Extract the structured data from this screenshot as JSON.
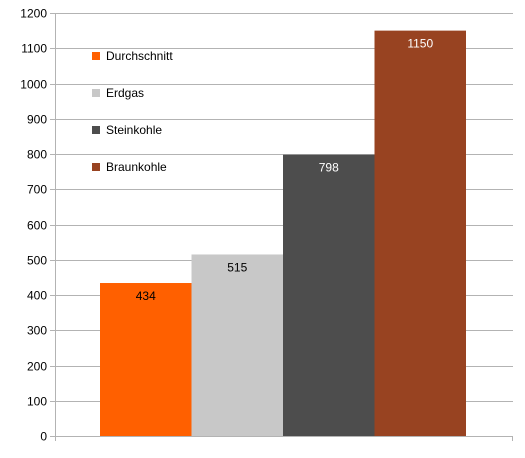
{
  "chart_data": {
    "type": "bar",
    "title": "",
    "xlabel": "",
    "ylabel": "",
    "ylim": [
      0,
      1200
    ],
    "yticks": [
      0,
      100,
      200,
      300,
      400,
      500,
      600,
      700,
      800,
      900,
      1000,
      1100,
      1200
    ],
    "grid": true,
    "legend_position": "top-left",
    "series": [
      {
        "name": "Durchschnitt",
        "value": 434,
        "color": "#ff6000",
        "label_color": "#000000"
      },
      {
        "name": "Erdgas",
        "value": 515,
        "color": "#c8c8c8",
        "label_color": "#000000"
      },
      {
        "name": "Steinkohle",
        "value": 798,
        "color": "#4d4d4d",
        "label_color": "#ffffff"
      },
      {
        "name": "Braunkohle",
        "value": 1150,
        "color": "#984321",
        "label_color": "#ffffff"
      }
    ]
  }
}
